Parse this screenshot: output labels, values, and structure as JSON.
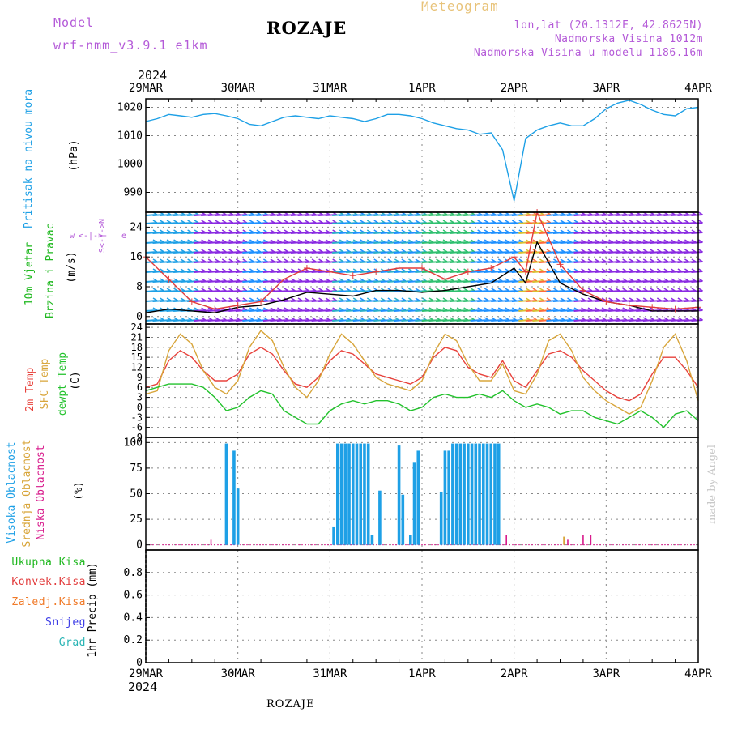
{
  "header": {
    "model_label": "Model",
    "model_name": "wrf-nmm_v3.9.1 e1km",
    "station": "ROZAJE",
    "product": "Meteogram",
    "lonlat": "lon,lat (20.1312E, 42.8625N)",
    "elevation": "Nadmorska Visina 1012m",
    "model_elevation": "Nadmorska Visina u modelu 1186.16m",
    "year": "2024",
    "footer_station": "ROZAJE",
    "credit": "made by Angel"
  },
  "colors": {
    "pressure": "#1ea0e6",
    "wind_speed": "#000000",
    "wind_gust": "#e23c3c",
    "t2m": "#e8423c",
    "sfc": "#d8a53a",
    "dewpt": "#22c22c",
    "cloud_high": "#1ea0e6",
    "cloud_mid": "#d8a53a",
    "cloud_low": "#d81b8c",
    "label_wind": "#1fb81f",
    "label_compass": "#b45ad8",
    "credit": "#c8c8c8"
  },
  "time_axis": {
    "labels": [
      "29MAR",
      "30MAR",
      "31MAR",
      "1APR",
      "2APR",
      "3APR",
      "4APR"
    ],
    "hours_total": 144
  },
  "chart_data": [
    {
      "type": "line",
      "panel": "pressure",
      "ylabel_title": "Pritisak na nivou mora",
      "ylabel_units": "(hPa)",
      "ylim": [
        983,
        1023
      ],
      "yticks": [
        990,
        1000,
        1010,
        1020
      ],
      "grid": true,
      "x_hours": [
        0,
        3,
        6,
        9,
        12,
        15,
        18,
        21,
        24,
        27,
        30,
        33,
        36,
        39,
        42,
        45,
        48,
        51,
        54,
        57,
        60,
        63,
        66,
        69,
        72,
        75,
        78,
        81,
        84,
        87,
        90,
        93,
        96,
        99,
        102,
        105,
        108,
        111,
        114,
        117,
        120,
        123,
        126,
        129,
        132,
        135,
        138,
        141,
        144
      ],
      "series": [
        {
          "key": "mslp",
          "values": [
            1015,
            1016,
            1017.5,
            1017,
            1016.5,
            1017.5,
            1017.8,
            1017,
            1016,
            1014,
            1013.5,
            1015,
            1016.5,
            1017,
            1016.5,
            1016,
            1017,
            1016.5,
            1016,
            1015,
            1016,
            1017.5,
            1017.5,
            1017,
            1016,
            1014.5,
            1013.5,
            1012.5,
            1012,
            1010.5,
            1011,
            1005,
            987,
            1009,
            1012,
            1013.5,
            1014.5,
            1013.5,
            1013.5,
            1016,
            1019.5,
            1021.5,
            1022.5,
            1021,
            1019,
            1017.5,
            1017,
            1019.5,
            1020
          ]
        }
      ]
    },
    {
      "type": "line",
      "panel": "wind",
      "ylabel_title": "10m Vjetar",
      "ylabel_title2": "Brzina i Pravac",
      "ylabel_units": "(m/s)",
      "compass_labels": {
        "w": "w",
        "e": "e",
        "n": "N",
        "s": "S"
      },
      "ylim": [
        -2,
        28
      ],
      "yticks": [
        0,
        8,
        16,
        24
      ],
      "grid": true,
      "x_hours": [
        0,
        6,
        12,
        18,
        24,
        30,
        36,
        42,
        48,
        54,
        60,
        66,
        72,
        78,
        84,
        90,
        96,
        99,
        102,
        108,
        114,
        120,
        126,
        132,
        138,
        144
      ],
      "series": [
        {
          "key": "speed",
          "values": [
            1,
            2,
            1.5,
            1,
            2.5,
            3,
            4.5,
            6.5,
            6,
            5.5,
            7,
            7,
            6.5,
            7,
            8,
            9,
            13,
            9,
            20,
            9,
            6,
            4,
            3,
            1.5,
            1.5,
            1.5
          ]
        },
        {
          "key": "gust",
          "values": [
            16,
            10,
            4,
            2,
            3,
            4,
            10,
            13,
            12,
            11,
            12,
            13,
            13,
            10,
            12,
            13,
            16,
            12,
            28,
            14,
            7,
            4,
            3,
            2.5,
            2,
            2.5
          ]
        }
      ]
    },
    {
      "type": "line",
      "panel": "temperature",
      "ylabel_title": "2m Temp",
      "ylabel_title2": "SFC Temp",
      "ylabel_title3": "dewpt Temp",
      "ylabel_units": "(C)",
      "ylim": [
        -9,
        25
      ],
      "yticks": [
        -9,
        -6,
        -3,
        0,
        3,
        6,
        9,
        12,
        15,
        18,
        21,
        24
      ],
      "grid": true,
      "x_hours": [
        0,
        3,
        6,
        9,
        12,
        15,
        18,
        21,
        24,
        27,
        30,
        33,
        36,
        39,
        42,
        45,
        48,
        51,
        54,
        57,
        60,
        63,
        66,
        69,
        72,
        75,
        78,
        81,
        84,
        87,
        90,
        93,
        96,
        99,
        102,
        105,
        108,
        111,
        114,
        117,
        120,
        123,
        126,
        129,
        132,
        135,
        138,
        141,
        144
      ],
      "series": [
        {
          "key": "t2m",
          "values": [
            6,
            7,
            14,
            17,
            15,
            11,
            8,
            8,
            10,
            16,
            18,
            16,
            11,
            7,
            6,
            9,
            14,
            17,
            16,
            13,
            10,
            9,
            8,
            7,
            9,
            15,
            18,
            17,
            12,
            10,
            9,
            14,
            8,
            6,
            11,
            16,
            17,
            15,
            11,
            8,
            5,
            3,
            2,
            4,
            10,
            15,
            15,
            11,
            6
          ]
        },
        {
          "key": "sfc",
          "values": [
            4,
            5,
            17,
            22,
            19,
            11,
            6,
            4,
            8,
            18,
            23,
            20,
            12,
            6,
            3,
            8,
            16,
            22,
            19,
            14,
            9,
            7,
            6,
            5,
            8,
            16,
            22,
            20,
            13,
            8,
            8,
            13,
            5,
            4,
            10,
            20,
            22,
            17,
            9,
            5,
            2,
            0,
            -2,
            0,
            8,
            18,
            22,
            14,
            2
          ]
        },
        {
          "key": "dewpt",
          "values": [
            5,
            6,
            7,
            7,
            7,
            6,
            3,
            -1,
            0,
            3,
            5,
            4,
            -1,
            -3,
            -5,
            -5,
            -1,
            1,
            2,
            1,
            2,
            2,
            1,
            -1,
            0,
            3,
            4,
            3,
            3,
            4,
            3,
            5,
            2,
            0,
            1,
            0,
            -2,
            -1,
            -1,
            -3,
            -4,
            -5,
            -3,
            -1,
            -3,
            -6,
            -2,
            -1,
            -4
          ]
        }
      ]
    },
    {
      "type": "bar",
      "panel": "cloud",
      "ylabel_title": "Visoka Oblacnost",
      "ylabel_title2": "Srednja Oblacnost",
      "ylabel_title3": "Niska Oblacnost",
      "ylabel_units": "(%)",
      "ylim": [
        -5,
        105
      ],
      "yticks": [
        0,
        25,
        50,
        75,
        100
      ],
      "grid": true,
      "series": [
        {
          "key": "high",
          "x_hours": [
            21,
            23,
            24,
            49,
            50,
            51,
            52,
            53,
            54,
            55,
            56,
            57,
            58,
            59,
            61,
            63,
            66,
            67,
            69,
            70,
            71,
            77,
            78,
            79,
            80,
            81,
            82,
            83,
            84,
            85,
            86,
            87,
            88,
            89,
            90,
            91,
            92
          ],
          "values": [
            99,
            92,
            55,
            18,
            99,
            99,
            99,
            99,
            99,
            99,
            99,
            99,
            99,
            10,
            53,
            0,
            97,
            49,
            10,
            81,
            92,
            52,
            92,
            92,
            99,
            99,
            99,
            99,
            99,
            99,
            99,
            99,
            99,
            99,
            99,
            99,
            99
          ]
        },
        {
          "key": "low",
          "x_hours": [
            17,
            94,
            110,
            114,
            116
          ],
          "values": [
            5,
            10,
            5,
            10,
            10
          ]
        },
        {
          "key": "mid",
          "x_hours": [
            109
          ],
          "values": [
            8
          ]
        }
      ]
    },
    {
      "type": "bar",
      "panel": "precip",
      "ylabel_title": "1hr Precip",
      "ylabel_units": "(mm)",
      "legend": [
        "Ukupna Kisa",
        "Konvek.Kisa",
        "Zaledj.Kisa",
        "Snijeg",
        "Grad"
      ],
      "legend_colors": [
        "#1fb81f",
        "#e23c3c",
        "#f07a28",
        "#3c3ce6",
        "#28b4b4"
      ],
      "ylim": [
        0,
        1
      ],
      "yticks": [
        0,
        0.2,
        0.4,
        0.6,
        0.8
      ],
      "grid": true,
      "series": []
    }
  ]
}
